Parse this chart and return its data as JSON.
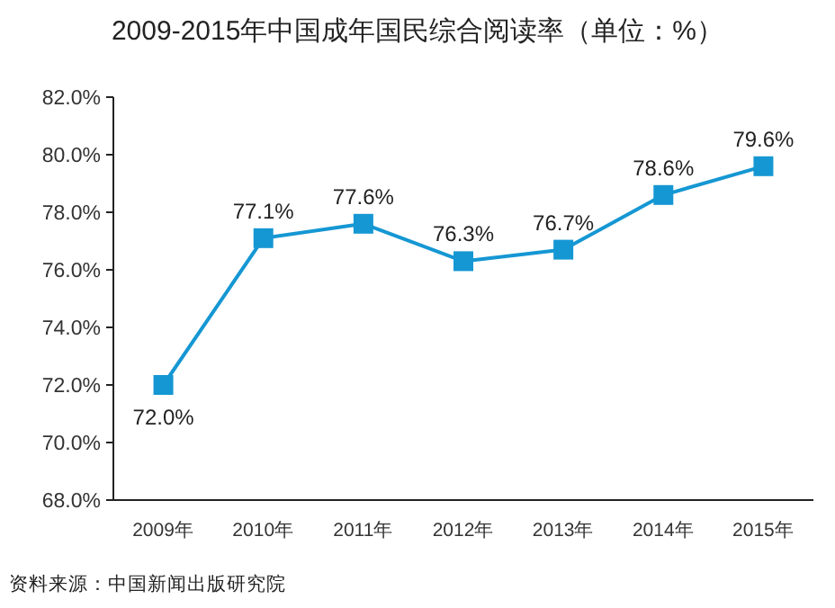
{
  "chart_data": {
    "type": "line",
    "title": "2009-2015年中国成年国民综合阅读率（单位：%）",
    "categories": [
      "2009年",
      "2010年",
      "2011年",
      "2012年",
      "2013年",
      "2014年",
      "2015年"
    ],
    "series": [
      {
        "color": "#1597d3",
        "values": [
          72.0,
          77.1,
          77.6,
          76.3,
          76.7,
          78.6,
          79.6
        ],
        "value_labels": [
          "72.0%",
          "77.1%",
          "77.6%",
          "76.3%",
          "76.7%",
          "78.6%",
          "79.6%"
        ]
      }
    ],
    "ylim": [
      68,
      82
    ],
    "yticks": [
      {
        "value": 68,
        "label": "68.0%"
      },
      {
        "value": 70,
        "label": "70.0%"
      },
      {
        "value": 72,
        "label": "72.0%"
      },
      {
        "value": 74,
        "label": "74.0%"
      },
      {
        "value": 76,
        "label": "76.0%"
      },
      {
        "value": 78,
        "label": "78.0%"
      },
      {
        "value": 80,
        "label": "80.0%"
      },
      {
        "value": 82,
        "label": "82.0%"
      }
    ],
    "marker": "square",
    "line_style": "solid",
    "annotations": [
      "资料来源：中国新闻出版研究院"
    ]
  }
}
